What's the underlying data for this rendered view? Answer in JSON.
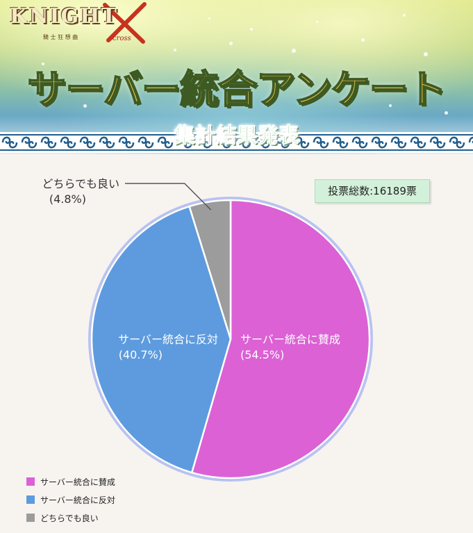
{
  "header": {
    "logo_text": "KNIGHT",
    "logo_subtext": "騎 士 狂 想 曲",
    "logo_cross": "cross",
    "title": "サーバー統合アンケート",
    "subtitle": "集計結果発表"
  },
  "total_votes_label": "投票総数:16189票",
  "chart_data": {
    "type": "pie",
    "title": "",
    "slices": [
      {
        "label": "サーバー統合に賛成",
        "percent_label": "(54.5%)",
        "value": 54.5,
        "color": "#dc61d5"
      },
      {
        "label": "サーバー統合に反対",
        "percent_label": "(40.7%)",
        "value": 40.7,
        "color": "#5d9bde"
      },
      {
        "label": "どちらでも良い",
        "percent_label": "(4.8%)",
        "value": 4.8,
        "color": "#9c9c9c"
      }
    ],
    "legend_placement": "bottom-left",
    "start_angle": "top, clockwise"
  },
  "legend": {
    "items": [
      {
        "label": "サーバー統合に賛成",
        "color": "#dc61d5"
      },
      {
        "label": "サーバー統合に反対",
        "color": "#5d9bde"
      },
      {
        "label": "どちらでも良い",
        "color": "#9c9c9c"
      }
    ]
  }
}
